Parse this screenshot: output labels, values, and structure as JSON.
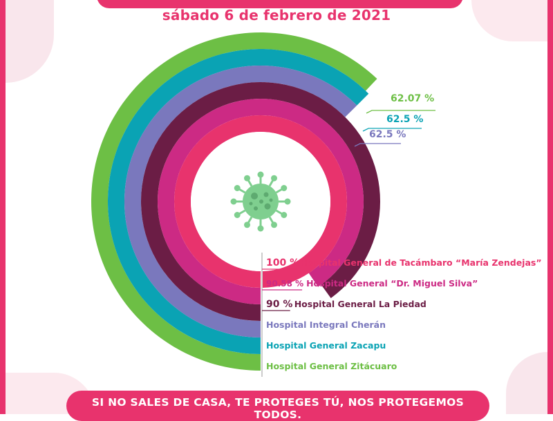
{
  "header": {
    "date": "sábado 6 de febrero de 2021"
  },
  "footer": {
    "slogan": "SI NO SALES DE CASA, TE PROTEGES TÚ, NOS PROTEGEMOS TODOS."
  },
  "chart_data": {
    "type": "radial-bar",
    "center_icon": "virus-icon",
    "rings": [
      {
        "name": "Hospital General Zitácuaro",
        "value": 62.07,
        "value_label": "62.07 %",
        "color": "#6dbf45"
      },
      {
        "name": "Hospital General Zacapu",
        "value": 62.5,
        "value_label": "62.5 %",
        "color": "#0aa3b4"
      },
      {
        "name": "Hospital Integral Cherán",
        "value": 62.5,
        "value_label": "62.5 %",
        "color": "#7a78bd"
      },
      {
        "name": "Hospital General La Piedad",
        "value": 90,
        "value_label": "90 %",
        "color": "#6b1d45"
      },
      {
        "name": "Hospital General “Dr. Miguel Silva”",
        "value": 90.58,
        "value_label": "90.58 %",
        "color": "#cc2a84"
      },
      {
        "name": "Hospital General de Tacámbaro “María Zendejas”",
        "value": 100,
        "value_label": "100 %",
        "color": "#e8336d"
      }
    ]
  }
}
